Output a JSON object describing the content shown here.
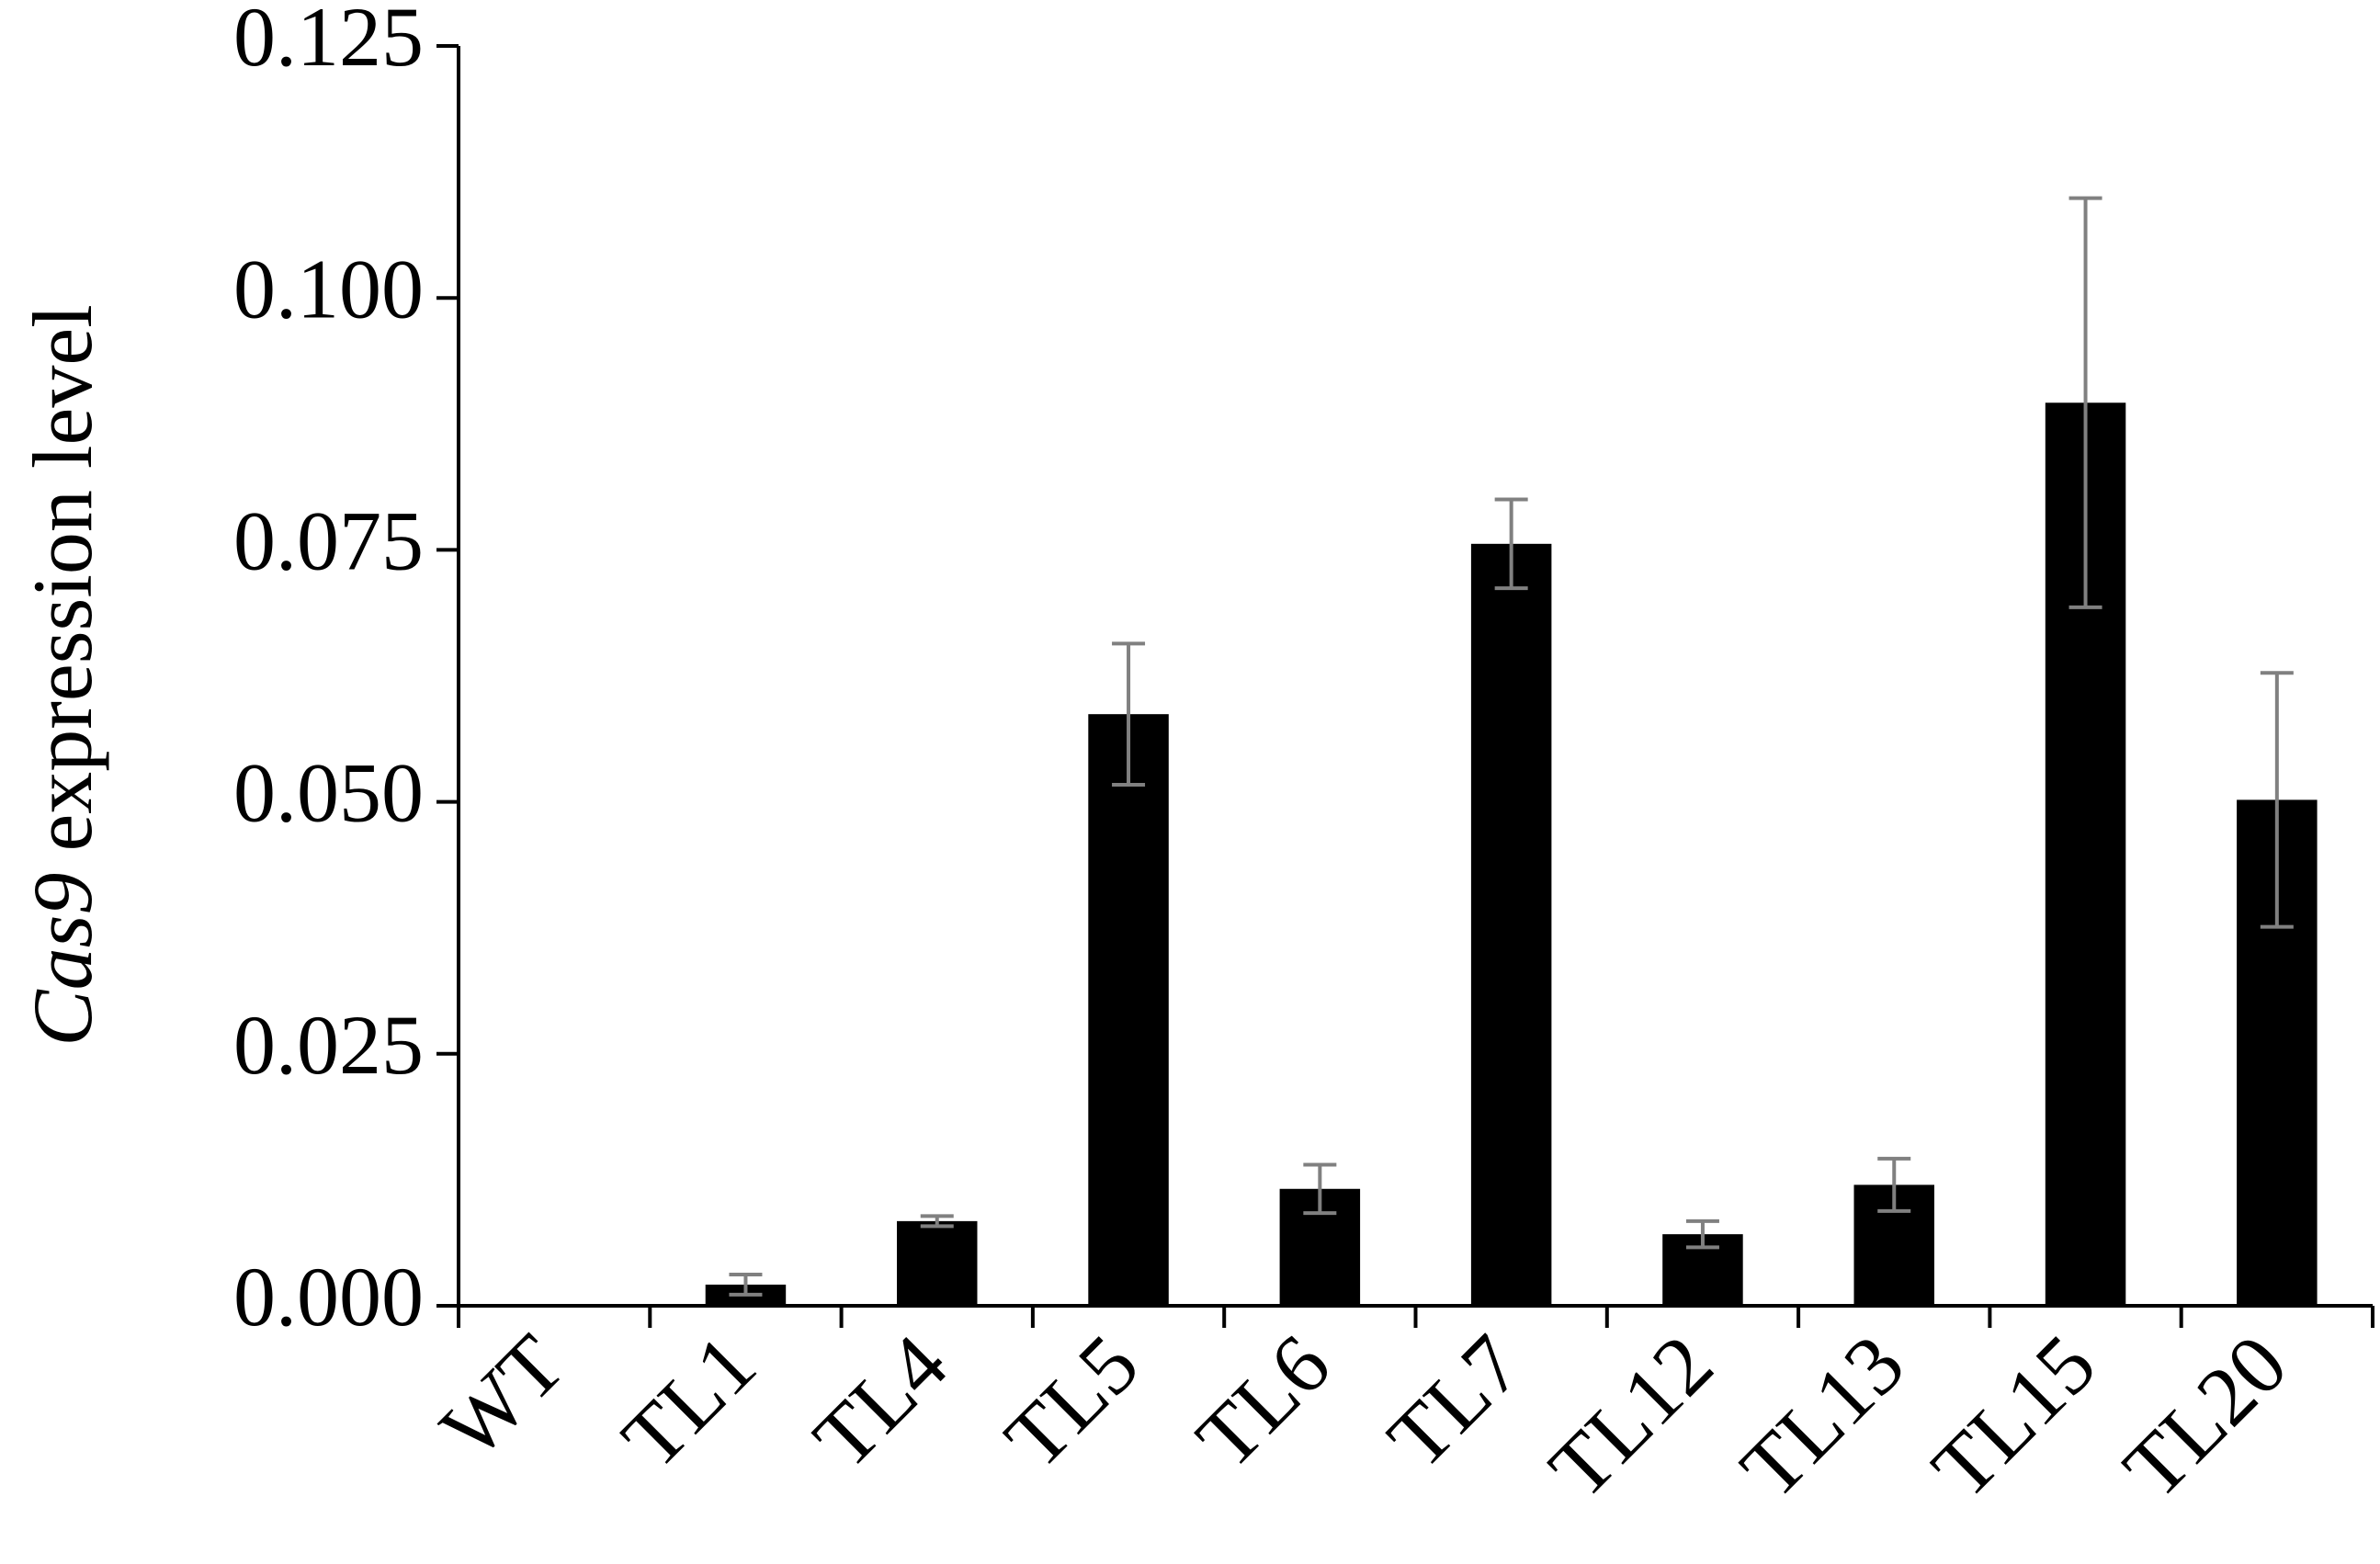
{
  "chart_data": {
    "type": "bar",
    "ylabel": {
      "italic": "Cas9",
      "text": "expression level"
    },
    "categories": [
      "WT",
      "TL1",
      "TL4",
      "TL5",
      "TL6",
      "TL7",
      "TL12",
      "TL13",
      "TL15",
      "TL20"
    ],
    "values": [
      0,
      0.0021,
      0.0084,
      0.0587,
      0.0116,
      0.0756,
      0.0071,
      0.012,
      0.0896,
      0.0502
    ],
    "errors": [
      0,
      0.001,
      0.0005,
      0.007,
      0.0024,
      0.0044,
      0.0013,
      0.0026,
      0.0203,
      0.0126
    ],
    "color": "#000000",
    "error_color": "#808080",
    "ylim": [
      0,
      0.125
    ],
    "yticks": [
      {
        "value": 0,
        "label": "0.000"
      },
      {
        "value": 0.025,
        "label": "0.025"
      },
      {
        "value": 0.05,
        "label": "0.050"
      },
      {
        "value": 0.075,
        "label": "0.075"
      },
      {
        "value": 0.1,
        "label": "0.100"
      },
      {
        "value": 0.125,
        "label": "0.125"
      }
    ],
    "grid": false
  }
}
